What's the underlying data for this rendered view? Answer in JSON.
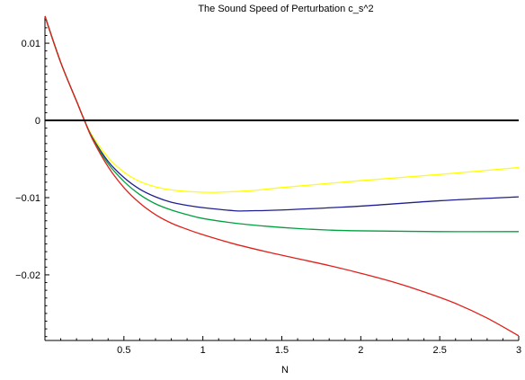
{
  "chart_data": {
    "type": "line",
    "title": "The Sound Speed of Perturbation  c_s^2",
    "xlabel": "N",
    "ylabel": "",
    "xlim": [
      0,
      3
    ],
    "ylim": [
      -0.0285,
      0.0135
    ],
    "x_ticks": [
      0.5,
      1,
      1.5,
      2,
      2.5,
      3
    ],
    "x_tick_labels": [
      "0.5",
      "1",
      "1.5",
      "2",
      "2.5",
      "3"
    ],
    "y_ticks": [
      0.01,
      0,
      -0.01,
      -0.02
    ],
    "y_tick_labels": [
      "0.01",
      "0",
      "−0.01",
      "−0.02"
    ],
    "grid": false,
    "zero_line": 0,
    "series": [
      {
        "color": "#ffff00",
        "x": [
          0,
          0.1,
          0.2,
          0.25,
          0.3,
          0.4,
          0.5,
          0.6,
          0.7,
          0.8,
          0.9,
          1.0,
          1.1,
          1.3,
          1.5,
          2.0,
          2.5,
          3.0
        ],
        "y": [
          0.0135,
          0.0075,
          0.0025,
          0.0,
          -0.002,
          -0.0048,
          -0.0067,
          -0.0079,
          -0.0086,
          -0.009,
          -0.0092,
          -0.0093,
          -0.0093,
          -0.0091,
          -0.0087,
          -0.0078,
          -0.007,
          -0.0061
        ]
      },
      {
        "color": "#1f1f8f",
        "x": [
          0,
          0.1,
          0.2,
          0.25,
          0.3,
          0.4,
          0.5,
          0.6,
          0.7,
          0.8,
          0.9,
          1.0,
          1.2,
          1.3,
          1.5,
          2.0,
          2.5,
          3.0
        ],
        "y": [
          0.0135,
          0.0075,
          0.0025,
          0.0,
          -0.0022,
          -0.0053,
          -0.0074,
          -0.0089,
          -0.0099,
          -0.0106,
          -0.011,
          -0.0113,
          -0.0117,
          -0.0117,
          -0.0116,
          -0.0111,
          -0.0104,
          -0.0099
        ]
      },
      {
        "color": "#00a040",
        "x": [
          0,
          0.1,
          0.2,
          0.25,
          0.3,
          0.4,
          0.5,
          0.6,
          0.7,
          0.8,
          0.9,
          1.0,
          1.2,
          1.4,
          1.6,
          1.8,
          2.0,
          2.5,
          3.0
        ],
        "y": [
          0.0135,
          0.0075,
          0.0025,
          0.0,
          -0.0023,
          -0.0056,
          -0.0079,
          -0.0096,
          -0.0108,
          -0.0116,
          -0.0122,
          -0.0127,
          -0.0133,
          -0.0137,
          -0.014,
          -0.0142,
          -0.0143,
          -0.0144,
          -0.0144
        ]
      },
      {
        "color": "#e0201a",
        "x": [
          0,
          0.1,
          0.2,
          0.25,
          0.3,
          0.4,
          0.5,
          0.6,
          0.7,
          0.8,
          0.9,
          1.0,
          1.2,
          1.4,
          1.6,
          1.8,
          2.0,
          2.2,
          2.4,
          2.6,
          2.8,
          3.0
        ],
        "y": [
          0.0135,
          0.0075,
          0.0025,
          0.0,
          -0.0024,
          -0.006,
          -0.0087,
          -0.0107,
          -0.0122,
          -0.0133,
          -0.0141,
          -0.0148,
          -0.016,
          -0.017,
          -0.0179,
          -0.0188,
          -0.0198,
          -0.0209,
          -0.0222,
          -0.0237,
          -0.0256,
          -0.0279
        ]
      }
    ]
  }
}
